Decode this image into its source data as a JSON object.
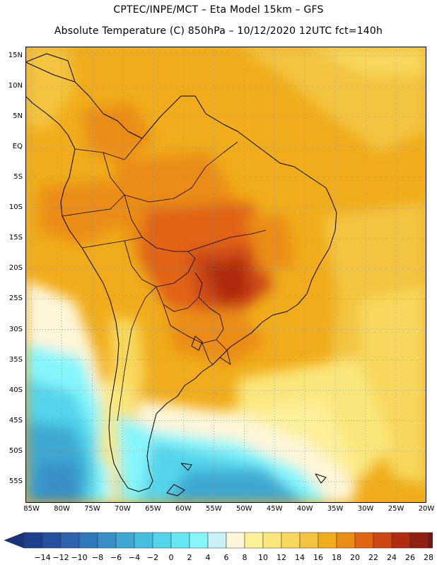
{
  "header": {
    "line1": "CPTEC/INPE/MCT –  Eta Model 15km – GFS",
    "line2": "Absolute Temperature (C) 850hPa – 10/12/2020 12UTC fct=140h"
  },
  "map": {
    "region": "South America",
    "lat_labels": [
      "15N",
      "10N",
      "5N",
      "EQ",
      "5S",
      "10S",
      "15S",
      "20S",
      "25S",
      "30S",
      "35S",
      "40S",
      "45S",
      "50S",
      "55S"
    ],
    "lat_values": [
      15,
      10,
      5,
      0,
      -5,
      -10,
      -15,
      -20,
      -25,
      -30,
      -35,
      -40,
      -45,
      -50,
      -55
    ],
    "lon_labels": [
      "85W",
      "80W",
      "75W",
      "70W",
      "65W",
      "60W",
      "55W",
      "50W",
      "45W",
      "40W",
      "35W",
      "30W",
      "25W",
      "20W"
    ],
    "lon_values": [
      -85,
      -80,
      -75,
      -70,
      -65,
      -60,
      -55,
      -50,
      -45,
      -40,
      -35,
      -30,
      -25,
      -20
    ],
    "lat_range": [
      -58.5,
      16.5
    ],
    "lon_range": [
      -86,
      -20
    ]
  },
  "colorbar": {
    "labels": [
      "-14",
      "-12",
      "-10",
      "-8",
      "-6",
      "-4",
      "-2",
      "0",
      "2",
      "4",
      "6",
      "8",
      "10",
      "12",
      "14",
      "16",
      "18",
      "20",
      "22",
      "24",
      "26",
      "28"
    ],
    "colors": [
      "#1e3f8e",
      "#25509e",
      "#2d63ae",
      "#2f78ba",
      "#3790c6",
      "#3ea8d2",
      "#46bfdf",
      "#52d4ea",
      "#66e8f4",
      "#86f6fc",
      "#c8f2f6",
      "#fdf6d8",
      "#fcf09a",
      "#fae67a",
      "#f7d85c",
      "#f3c440",
      "#f0ac1a",
      "#ea8c16",
      "#e06412",
      "#cc4812",
      "#b02c10",
      "#902012",
      "#761614"
    ],
    "min_color": "#18337a",
    "max_color": "#5e0e22"
  }
}
